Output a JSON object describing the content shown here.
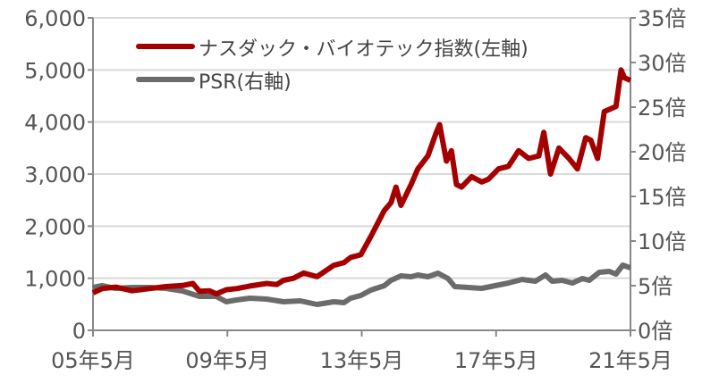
{
  "chart_data": {
    "type": "line",
    "title": "",
    "x_ticks": [
      {
        "x": 2005.33,
        "label": "05年5月"
      },
      {
        "x": 2009.33,
        "label": "09年5月"
      },
      {
        "x": 2013.33,
        "label": "13年5月"
      },
      {
        "x": 2017.33,
        "label": "17年5月"
      },
      {
        "x": 2021.33,
        "label": "21年5月"
      }
    ],
    "xlim": [
      2005.33,
      2021.33
    ],
    "y_left": {
      "lim": [
        0,
        6000
      ],
      "ticks": [
        0,
        1000,
        2000,
        3000,
        4000,
        5000,
        6000
      ],
      "tick_labels": [
        "0",
        "1,000",
        "2,000",
        "3,000",
        "4,000",
        "5,000",
        "6,000"
      ]
    },
    "y_right": {
      "lim": [
        0,
        35
      ],
      "ticks": [
        0,
        5,
        10,
        15,
        20,
        25,
        30,
        35
      ],
      "tick_labels": [
        "0倍",
        "5倍",
        "10倍",
        "15倍",
        "20倍",
        "25倍",
        "30倍",
        "35倍"
      ]
    },
    "grid": "horizontal",
    "legend": "top-left",
    "series": [
      {
        "name": "ナスダック・バイオテック指数(左軸)",
        "axis": "left",
        "color": "#a50000",
        "x": [
          2005.33,
          2005.6,
          2006,
          2006.5,
          2007,
          2007.5,
          2008,
          2008.3,
          2008.5,
          2008.8,
          2009,
          2009.3,
          2009.6,
          2010,
          2010.5,
          2010.8,
          2011,
          2011.3,
          2011.6,
          2012,
          2012.5,
          2012.8,
          2013,
          2013.3,
          2013.6,
          2014,
          2014.2,
          2014.35,
          2014.5,
          2014.8,
          2015,
          2015.3,
          2015.55,
          2015.65,
          2015.85,
          2016.0,
          2016.15,
          2016.3,
          2016.6,
          2016.9,
          2017.1,
          2017.4,
          2017.7,
          2018.0,
          2018.3,
          2018.6,
          2018.75,
          2018.95,
          2019.2,
          2019.5,
          2019.75,
          2020.0,
          2020.15,
          2020.35,
          2020.55,
          2020.9,
          2021.05,
          2021.15,
          2021.33
        ],
        "y": [
          720,
          800,
          830,
          760,
          800,
          840,
          860,
          900,
          750,
          760,
          700,
          780,
          800,
          850,
          900,
          880,
          960,
          1000,
          1100,
          1030,
          1250,
          1300,
          1400,
          1450,
          1800,
          2300,
          2450,
          2750,
          2400,
          2800,
          3100,
          3350,
          3800,
          3950,
          3250,
          3450,
          2800,
          2750,
          2950,
          2850,
          2900,
          3100,
          3150,
          3450,
          3300,
          3350,
          3800,
          3000,
          3500,
          3300,
          3100,
          3700,
          3650,
          3300,
          4200,
          4300,
          5000,
          4850,
          4800
        ]
      },
      {
        "name": "PSR(右軸)",
        "axis": "right",
        "color": "#6b6b6b",
        "x": [
          2005.33,
          2005.6,
          2006,
          2006.5,
          2007,
          2007.5,
          2008,
          2008.5,
          2009,
          2009.3,
          2009.6,
          2010,
          2010.5,
          2011,
          2011.5,
          2012,
          2012.5,
          2012.8,
          2013,
          2013.3,
          2013.6,
          2014,
          2014.2,
          2014.5,
          2014.8,
          2015,
          2015.3,
          2015.6,
          2015.9,
          2016.1,
          2016.5,
          2016.9,
          2017.3,
          2017.7,
          2018.1,
          2018.5,
          2018.8,
          2019.0,
          2019.3,
          2019.6,
          2019.9,
          2020.1,
          2020.4,
          2020.7,
          2020.9,
          2021.1,
          2021.33
        ],
        "y": [
          4.8,
          5.0,
          4.7,
          4.8,
          4.8,
          4.7,
          4.4,
          3.8,
          3.8,
          3.2,
          3.4,
          3.6,
          3.5,
          3.2,
          3.3,
          2.9,
          3.2,
          3.1,
          3.6,
          3.9,
          4.5,
          5.0,
          5.6,
          6.1,
          6.0,
          6.2,
          6.0,
          6.4,
          5.8,
          4.9,
          4.8,
          4.7,
          5.0,
          5.3,
          5.7,
          5.5,
          6.2,
          5.5,
          5.6,
          5.3,
          5.8,
          5.6,
          6.5,
          6.6,
          6.3,
          7.3,
          7.0
        ]
      }
    ]
  }
}
